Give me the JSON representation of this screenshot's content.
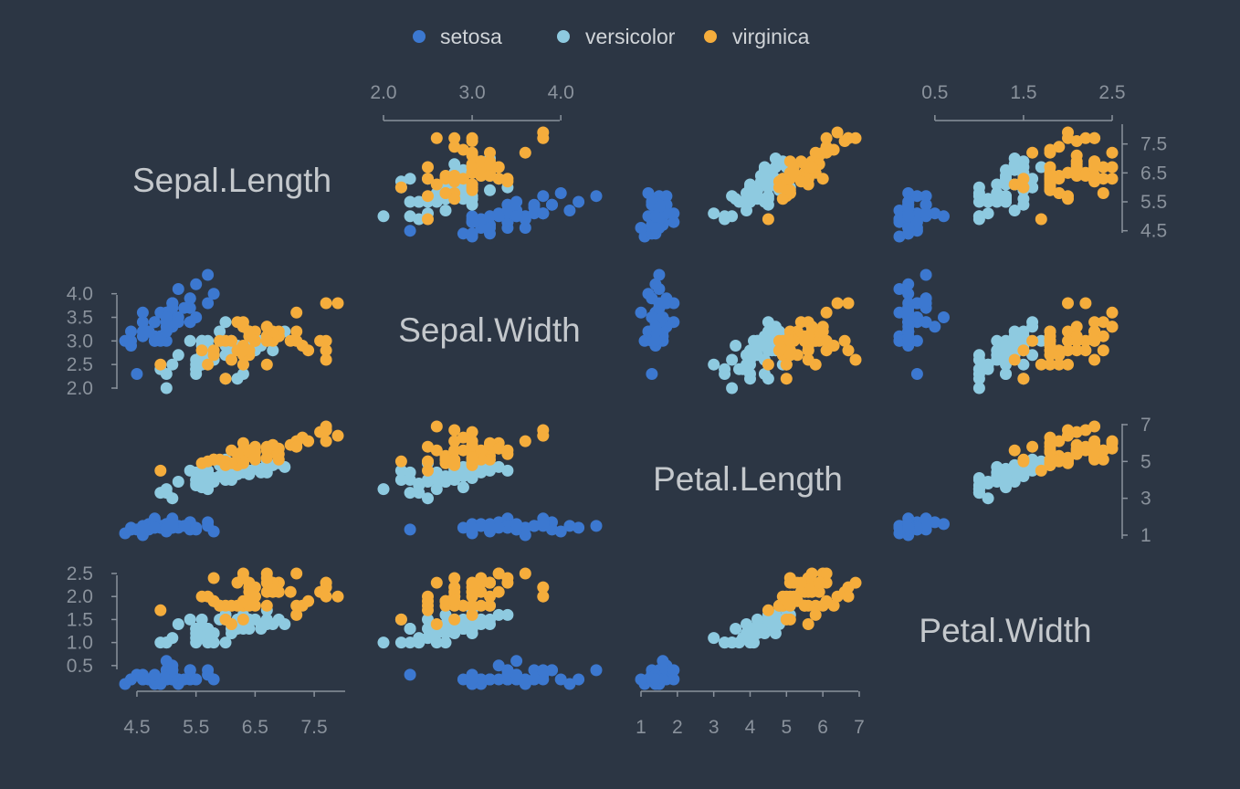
{
  "chart_data": {
    "type": "scatter",
    "variables": [
      "Sepal.Length",
      "Sepal.Width",
      "Petal.Length",
      "Petal.Width"
    ],
    "legend": {
      "position": "top",
      "entries": [
        {
          "name": "setosa",
          "color": "#3c78d0"
        },
        {
          "name": "versicolor",
          "color": "#8ecae0"
        },
        {
          "name": "virginica",
          "color": "#f5ad3c"
        }
      ]
    },
    "axes": {
      "Sepal.Length": {
        "ticks": [
          "4.5",
          "5.5",
          "6.5",
          "7.5"
        ],
        "range": [
          4.3,
          7.9
        ]
      },
      "Sepal.Width": {
        "ticks": [
          "2.0",
          "2.5",
          "3.0",
          "3.5",
          "4.0"
        ],
        "range": [
          2.0,
          4.4
        ]
      },
      "Petal.Length": {
        "ticks": [
          "1",
          "3",
          "5",
          "7"
        ],
        "range": [
          1.0,
          6.9
        ]
      },
      "Petal.Width": {
        "ticks": [
          "0.5",
          "1.0",
          "1.5",
          "2.0",
          "2.5"
        ],
        "range": [
          0.1,
          2.5
        ]
      },
      "top_axis_sepal_width_ticks": [
        "2.0",
        "3.0",
        "4.0"
      ],
      "top_axis_petal_width_ticks": [
        "0.5",
        "1.5",
        "2.5"
      ],
      "bottom_axis_petal_length_ticks": [
        "1",
        "2",
        "3",
        "4",
        "5",
        "6",
        "7"
      ]
    },
    "grid": false,
    "series": [
      {
        "name": "setosa",
        "points": [
          [
            5.1,
            3.5,
            1.4,
            0.2
          ],
          [
            4.9,
            3.0,
            1.4,
            0.2
          ],
          [
            4.7,
            3.2,
            1.3,
            0.2
          ],
          [
            4.6,
            3.1,
            1.5,
            0.2
          ],
          [
            5.0,
            3.6,
            1.4,
            0.2
          ],
          [
            5.4,
            3.9,
            1.7,
            0.4
          ],
          [
            4.6,
            3.4,
            1.4,
            0.3
          ],
          [
            5.0,
            3.4,
            1.5,
            0.2
          ],
          [
            4.4,
            2.9,
            1.4,
            0.2
          ],
          [
            4.9,
            3.1,
            1.5,
            0.1
          ],
          [
            5.4,
            3.7,
            1.5,
            0.2
          ],
          [
            4.8,
            3.4,
            1.6,
            0.2
          ],
          [
            4.8,
            3.0,
            1.4,
            0.1
          ],
          [
            4.3,
            3.0,
            1.1,
            0.1
          ],
          [
            5.8,
            4.0,
            1.2,
            0.2
          ],
          [
            5.7,
            4.4,
            1.5,
            0.4
          ],
          [
            5.4,
            3.9,
            1.3,
            0.4
          ],
          [
            5.1,
            3.5,
            1.4,
            0.3
          ],
          [
            5.7,
            3.8,
            1.7,
            0.3
          ],
          [
            5.1,
            3.8,
            1.5,
            0.3
          ],
          [
            5.4,
            3.4,
            1.7,
            0.2
          ],
          [
            5.1,
            3.7,
            1.5,
            0.4
          ],
          [
            4.6,
            3.6,
            1.0,
            0.2
          ],
          [
            5.1,
            3.3,
            1.7,
            0.5
          ],
          [
            4.8,
            3.4,
            1.9,
            0.2
          ],
          [
            5.0,
            3.0,
            1.6,
            0.2
          ],
          [
            5.0,
            3.4,
            1.6,
            0.4
          ],
          [
            5.2,
            3.5,
            1.5,
            0.2
          ],
          [
            5.2,
            3.4,
            1.4,
            0.2
          ],
          [
            4.7,
            3.2,
            1.6,
            0.2
          ],
          [
            4.8,
            3.1,
            1.6,
            0.2
          ],
          [
            5.4,
            3.4,
            1.5,
            0.4
          ],
          [
            5.2,
            4.1,
            1.5,
            0.1
          ],
          [
            5.5,
            4.2,
            1.4,
            0.2
          ],
          [
            4.9,
            3.1,
            1.5,
            0.2
          ],
          [
            5.0,
            3.2,
            1.2,
            0.2
          ],
          [
            5.5,
            3.5,
            1.3,
            0.2
          ],
          [
            4.9,
            3.6,
            1.4,
            0.1
          ],
          [
            4.4,
            3.0,
            1.3,
            0.2
          ],
          [
            5.1,
            3.4,
            1.5,
            0.2
          ],
          [
            5.0,
            3.5,
            1.3,
            0.3
          ],
          [
            4.5,
            2.3,
            1.3,
            0.3
          ],
          [
            4.4,
            3.2,
            1.3,
            0.2
          ],
          [
            5.0,
            3.5,
            1.6,
            0.6
          ],
          [
            5.1,
            3.8,
            1.9,
            0.4
          ],
          [
            4.8,
            3.0,
            1.4,
            0.3
          ],
          [
            5.1,
            3.8,
            1.6,
            0.2
          ],
          [
            4.6,
            3.2,
            1.4,
            0.2
          ],
          [
            5.3,
            3.7,
            1.5,
            0.2
          ],
          [
            5.0,
            3.3,
            1.4,
            0.2
          ]
        ]
      },
      {
        "name": "versicolor",
        "points": [
          [
            7.0,
            3.2,
            4.7,
            1.4
          ],
          [
            6.4,
            3.2,
            4.5,
            1.5
          ],
          [
            6.9,
            3.1,
            4.9,
            1.5
          ],
          [
            5.5,
            2.3,
            4.0,
            1.3
          ],
          [
            6.5,
            2.8,
            4.6,
            1.5
          ],
          [
            5.7,
            2.8,
            4.5,
            1.3
          ],
          [
            6.3,
            3.3,
            4.7,
            1.6
          ],
          [
            4.9,
            2.4,
            3.3,
            1.0
          ],
          [
            6.6,
            2.9,
            4.6,
            1.3
          ],
          [
            5.2,
            2.7,
            3.9,
            1.4
          ],
          [
            5.0,
            2.0,
            3.5,
            1.0
          ],
          [
            5.9,
            3.0,
            4.2,
            1.5
          ],
          [
            6.0,
            2.2,
            4.0,
            1.0
          ],
          [
            6.1,
            2.9,
            4.7,
            1.4
          ],
          [
            5.6,
            2.9,
            3.6,
            1.3
          ],
          [
            6.7,
            3.1,
            4.4,
            1.4
          ],
          [
            5.6,
            3.0,
            4.5,
            1.5
          ],
          [
            5.8,
            2.7,
            4.1,
            1.0
          ],
          [
            6.2,
            2.2,
            4.5,
            1.5
          ],
          [
            5.6,
            2.5,
            3.9,
            1.1
          ],
          [
            5.9,
            3.2,
            4.8,
            1.8
          ],
          [
            6.1,
            2.8,
            4.0,
            1.3
          ],
          [
            6.3,
            2.5,
            4.9,
            1.5
          ],
          [
            6.1,
            2.8,
            4.7,
            1.2
          ],
          [
            6.4,
            2.9,
            4.3,
            1.3
          ],
          [
            6.6,
            3.0,
            4.4,
            1.4
          ],
          [
            6.8,
            2.8,
            4.8,
            1.4
          ],
          [
            6.7,
            3.0,
            5.0,
            1.7
          ],
          [
            6.0,
            2.9,
            4.5,
            1.5
          ],
          [
            5.7,
            2.6,
            3.5,
            1.0
          ],
          [
            5.5,
            2.4,
            3.8,
            1.1
          ],
          [
            5.5,
            2.4,
            3.7,
            1.0
          ],
          [
            5.8,
            2.7,
            3.9,
            1.2
          ],
          [
            6.0,
            2.7,
            5.1,
            1.6
          ],
          [
            5.4,
            3.0,
            4.5,
            1.5
          ],
          [
            6.0,
            3.4,
            4.5,
            1.6
          ],
          [
            6.7,
            3.1,
            4.7,
            1.5
          ],
          [
            6.3,
            2.3,
            4.4,
            1.3
          ],
          [
            5.6,
            3.0,
            4.1,
            1.3
          ],
          [
            5.5,
            2.5,
            4.0,
            1.3
          ],
          [
            5.5,
            2.6,
            4.4,
            1.2
          ],
          [
            6.1,
            3.0,
            4.6,
            1.4
          ],
          [
            5.8,
            2.6,
            4.0,
            1.2
          ],
          [
            5.0,
            2.3,
            3.3,
            1.0
          ],
          [
            5.6,
            2.7,
            4.2,
            1.3
          ],
          [
            5.7,
            3.0,
            4.2,
            1.2
          ],
          [
            5.7,
            2.9,
            4.2,
            1.3
          ],
          [
            6.2,
            2.9,
            4.3,
            1.3
          ],
          [
            5.1,
            2.5,
            3.0,
            1.1
          ],
          [
            5.7,
            2.8,
            4.1,
            1.3
          ]
        ]
      },
      {
        "name": "virginica",
        "points": [
          [
            6.3,
            3.3,
            6.0,
            2.5
          ],
          [
            5.8,
            2.7,
            5.1,
            1.9
          ],
          [
            7.1,
            3.0,
            5.9,
            2.1
          ],
          [
            6.3,
            2.9,
            5.6,
            1.8
          ],
          [
            6.5,
            3.0,
            5.8,
            2.2
          ],
          [
            7.6,
            3.0,
            6.6,
            2.1
          ],
          [
            4.9,
            2.5,
            4.5,
            1.7
          ],
          [
            7.3,
            2.9,
            6.3,
            1.8
          ],
          [
            6.7,
            2.5,
            5.8,
            1.8
          ],
          [
            7.2,
            3.6,
            6.1,
            2.5
          ],
          [
            6.5,
            3.2,
            5.1,
            2.0
          ],
          [
            6.4,
            2.7,
            5.3,
            1.9
          ],
          [
            6.8,
            3.0,
            5.5,
            2.1
          ],
          [
            5.7,
            2.5,
            5.0,
            2.0
          ],
          [
            5.8,
            2.8,
            5.1,
            2.4
          ],
          [
            6.4,
            3.2,
            5.3,
            2.3
          ],
          [
            6.5,
            3.0,
            5.5,
            1.8
          ],
          [
            7.7,
            3.8,
            6.7,
            2.2
          ],
          [
            7.7,
            2.6,
            6.9,
            2.3
          ],
          [
            6.0,
            2.2,
            5.0,
            1.5
          ],
          [
            6.9,
            3.2,
            5.7,
            2.3
          ],
          [
            5.6,
            2.8,
            4.9,
            2.0
          ],
          [
            7.7,
            2.8,
            6.7,
            2.0
          ],
          [
            6.3,
            2.7,
            4.9,
            1.8
          ],
          [
            6.7,
            3.3,
            5.7,
            2.1
          ],
          [
            7.2,
            3.2,
            6.0,
            1.8
          ],
          [
            6.2,
            2.8,
            4.8,
            1.8
          ],
          [
            6.1,
            3.0,
            4.9,
            1.8
          ],
          [
            6.4,
            2.8,
            5.6,
            2.1
          ],
          [
            7.2,
            3.0,
            5.8,
            1.6
          ],
          [
            7.4,
            2.8,
            6.1,
            1.9
          ],
          [
            7.9,
            3.8,
            6.4,
            2.0
          ],
          [
            6.4,
            2.8,
            5.6,
            2.2
          ],
          [
            6.3,
            2.8,
            5.1,
            1.5
          ],
          [
            6.1,
            2.6,
            5.6,
            1.4
          ],
          [
            7.7,
            3.0,
            6.1,
            2.3
          ],
          [
            6.3,
            3.4,
            5.6,
            2.4
          ],
          [
            6.4,
            3.1,
            5.5,
            1.8
          ],
          [
            6.0,
            3.0,
            4.8,
            1.8
          ],
          [
            6.9,
            3.1,
            5.4,
            2.1
          ],
          [
            6.7,
            3.1,
            5.6,
            2.4
          ],
          [
            6.9,
            3.1,
            5.1,
            2.3
          ],
          [
            5.8,
            2.7,
            5.1,
            1.9
          ],
          [
            6.8,
            3.2,
            5.9,
            2.3
          ],
          [
            6.7,
            3.3,
            5.7,
            2.5
          ],
          [
            6.7,
            3.0,
            5.2,
            2.3
          ],
          [
            6.3,
            2.5,
            5.0,
            1.9
          ],
          [
            6.5,
            3.0,
            5.2,
            2.0
          ],
          [
            6.2,
            3.4,
            5.4,
            2.3
          ],
          [
            5.9,
            3.0,
            5.1,
            1.8
          ]
        ]
      }
    ]
  }
}
